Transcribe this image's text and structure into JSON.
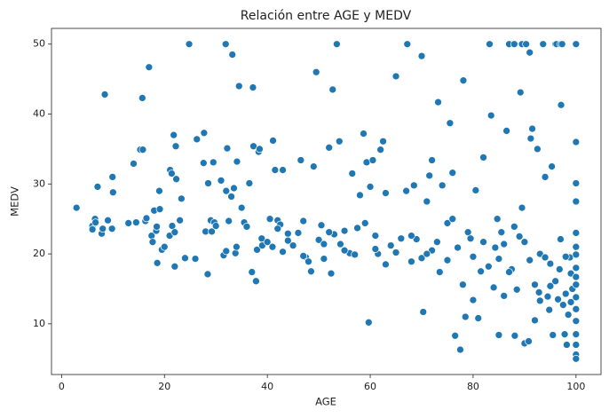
{
  "chart_data": {
    "type": "scatter",
    "title": "Relación entre AGE y MEDV",
    "x_label": "AGE",
    "y_label": "MEDV",
    "color": "#1f77b4",
    "xlim": [
      -1.96,
      104.86
    ],
    "ylim": [
      2.75,
      52.25
    ],
    "xticks": [
      0,
      20,
      40,
      60,
      80,
      100
    ],
    "yticks": [
      10,
      20,
      30,
      40,
      50
    ],
    "grid": false,
    "x": [
      2.9,
      6,
      6,
      6.5,
      6.6,
      7,
      7.8,
      8,
      8.4,
      9,
      9.8,
      9.9,
      10,
      13,
      14,
      14.5,
      15.3,
      15.7,
      15.8,
      16.3,
      16.5,
      17,
      17.5,
      17.7,
      18,
      18.4,
      18.5,
      18.6,
      19,
      19.1,
      19.5,
      20,
      21,
      21.1,
      21.4,
      21.5,
      21.8,
      22,
      22,
      22.2,
      22.3,
      23,
      23.3,
      24,
      24.8,
      26,
      26.3,
      27.6,
      27.7,
      28,
      28.4,
      28.5,
      29,
      29.2,
      29.5,
      29.7,
      30,
      31,
      31.5,
      31.9,
      32,
      32,
      32.2,
      32.5,
      33,
      33.2,
      33.5,
      33.8,
      34,
      34.1,
      34.5,
      35,
      35.5,
      36,
      36.5,
      37,
      37.2,
      37.3,
      37.8,
      38,
      38.3,
      38.5,
      38.9,
      39,
      40,
      40.5,
      41,
      41.1,
      41.5,
      42,
      42.5,
      43,
      43,
      44,
      45,
      46,
      46.5,
      47,
      47.5,
      48,
      48.5,
      49,
      49.5,
      50,
      50.5,
      51,
      52,
      52.4,
      52.7,
      53,
      53.5,
      54,
      54.2,
      55,
      56,
      56.5,
      57.5,
      58,
      58.7,
      59,
      59.3,
      59.7,
      60,
      60.5,
      61,
      61.5,
      62,
      62.5,
      63,
      64,
      65,
      66,
      67,
      67.2,
      68,
      68.5,
      69,
      70,
      70.3,
      71,
      71.5,
      72,
      73,
      73.2,
      74,
      75,
      75.5,
      76,
      76.5,
      77.5,
      78,
      78.1,
      78.5,
      79,
      80,
      80.5,
      81,
      82,
      83,
      83.2,
      83.5,
      84,
      84.3,
      85,
      86,
      86.5,
      87,
      87.5,
      88,
      88.1,
      89,
      89.2,
      89.5,
      90,
      90.3,
      90.8,
      91,
      91.2,
      91.5,
      92,
      92.5,
      93,
      93.6,
      94,
      94.5,
      95,
      95.3,
      95.5,
      96,
      96.2,
      96.5,
      97,
      97.1,
      97.3,
      97.5,
      97.8,
      98,
      98.2,
      98.5,
      98.8,
      99,
      99.3,
      100,
      100,
      100,
      100,
      100,
      100,
      100,
      100,
      100,
      100,
      100,
      100,
      100,
      100,
      100,
      100,
      100,
      65,
      70,
      72,
      75,
      77,
      80,
      82,
      85,
      87,
      88,
      90,
      91,
      92,
      93,
      94,
      95,
      96,
      97,
      98,
      99,
      85.5,
      88.5,
      92.8,
      96.8,
      94.8,
      89.5,
      84.7,
      86,
      81.5,
      79.5,
      76,
      73.5,
      71,
      68,
      63,
      61,
      57,
      55,
      52,
      51,
      47,
      44,
      42
    ],
    "values": [
      26.6,
      24,
      23.5,
      25,
      24.5,
      29.6,
      22.9,
      23.6,
      42.8,
      24.8,
      23.6,
      31,
      28.8,
      24.4,
      32.9,
      24.5,
      34.9,
      42.3,
      34.9,
      24.7,
      25.1,
      46.7,
      22.6,
      21.7,
      26.2,
      23.3,
      23.9,
      18.7,
      29,
      26.4,
      20.6,
      21,
      22.6,
      32,
      31.5,
      24,
      37,
      23.1,
      18.2,
      35.4,
      30.7,
      24.8,
      27.9,
      19.4,
      50,
      19.3,
      36.4,
      33,
      37.3,
      23.2,
      17.1,
      30.1,
      24.8,
      23.2,
      33.1,
      24.5,
      24,
      30.5,
      19.8,
      50,
      20.4,
      29,
      35.1,
      24.7,
      28.2,
      48.5,
      29.4,
      20.1,
      21,
      33.2,
      44,
      26.6,
      24.5,
      23.9,
      30.1,
      17.4,
      43.8,
      35.4,
      16.1,
      20.6,
      34.6,
      35,
      22.2,
      21.2,
      21.7,
      25,
      21,
      36.2,
      32,
      24.8,
      24.2,
      32,
      20.3,
      22.9,
      21.2,
      23,
      33.4,
      24.7,
      19.5,
      18.9,
      17.5,
      32.5,
      46,
      22,
      24.1,
      21.4,
      35.2,
      17.2,
      43.5,
      22.8,
      50,
      36.1,
      21.4,
      23.3,
      20.1,
      31.5,
      23.7,
      28.4,
      37.2,
      24.4,
      33.1,
      10.2,
      29.6,
      33.4,
      22.6,
      20,
      34.9,
      36.1,
      28.7,
      21.2,
      45.4,
      22.2,
      29,
      50,
      18.9,
      29.8,
      22.1,
      48.3,
      11.7,
      27.5,
      31.2,
      33.4,
      21.7,
      41.7,
      29.8,
      24.4,
      38.7,
      31.6,
      8.3,
      6.3,
      15.6,
      44.8,
      11,
      23.1,
      13.4,
      29.1,
      10.8,
      33.8,
      18.2,
      50,
      39.8,
      15.2,
      20.9,
      8.4,
      14,
      37.6,
      50,
      17.8,
      50,
      8.3,
      22.5,
      43.1,
      50,
      7.2,
      50,
      7.5,
      48.8,
      36.5,
      37.9,
      10.5,
      35,
      13.3,
      50,
      31,
      13.9,
      15.4,
      32.5,
      8.4,
      50,
      50,
      13.5,
      50,
      41.3,
      50,
      12.7,
      8.5,
      14.3,
      7,
      11.3,
      19.5,
      17.2,
      15,
      50,
      36,
      27.5,
      23,
      19.9,
      18,
      15.6,
      13.8,
      12.1,
      10.4,
      8.5,
      7,
      5.6,
      5,
      16.7,
      21,
      30.1,
      20.2,
      19.4,
      20.5,
      19.1,
      20.9,
      19.6,
      21.7,
      19.3,
      17.4,
      23.9,
      21.7,
      19.1,
      15.6,
      20,
      19.5,
      18.6,
      16.1,
      22.1,
      19.6,
      13.1,
      23.1,
      14.9,
      14.5,
      17.8,
      12,
      26.6,
      25,
      21.4,
      17.5,
      22.2,
      25,
      17.4,
      20,
      22.6,
      18.5,
      20.7,
      19.9,
      20.5,
      23.1,
      19.3,
      19.7,
      21.9,
      23.6
    ]
  }
}
